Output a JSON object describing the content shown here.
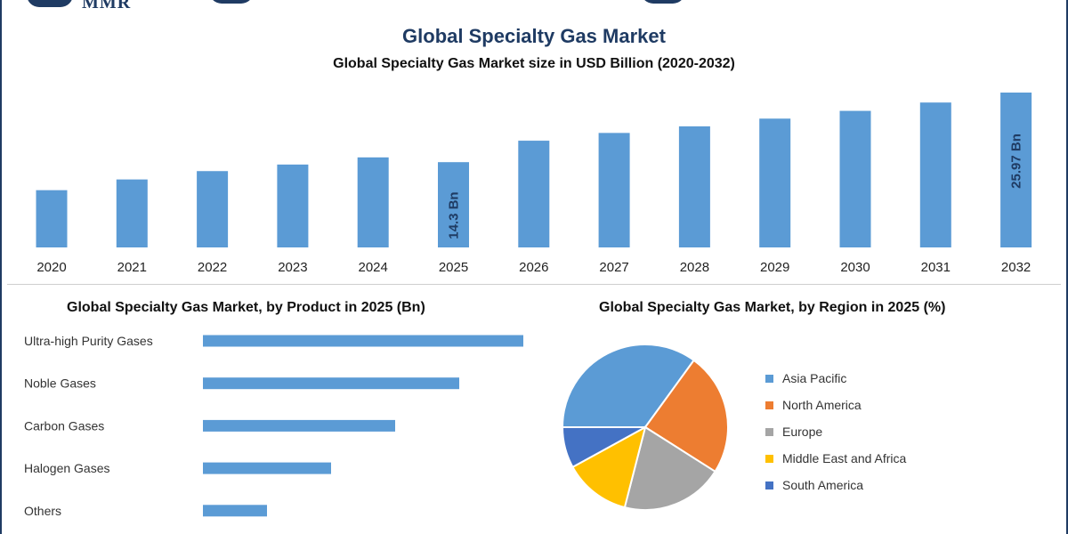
{
  "header": {
    "brand": "MMR",
    "title": "Global Specialty Gas Market"
  },
  "colors": {
    "title": "#1f3b63",
    "bar": "#5b9bd5",
    "asia_pacific": "#5b9bd5",
    "north_america": "#ed7d31",
    "europe": "#a5a5a5",
    "middle_east_africa": "#ffc000",
    "south_america": "#4472c4"
  },
  "chart_data": [
    {
      "type": "bar",
      "title": "Global Specialty Gas Market size in USD Billion (2020-2032)",
      "categories": [
        "2020",
        "2021",
        "2022",
        "2023",
        "2024",
        "2025",
        "2026",
        "2027",
        "2028",
        "2029",
        "2030",
        "2031",
        "2032"
      ],
      "values": [
        9.6,
        11.4,
        12.8,
        13.9,
        15.1,
        14.3,
        17.9,
        19.2,
        20.3,
        21.6,
        22.9,
        24.3,
        25.97
      ],
      "data_labels": [
        {
          "category": "2025",
          "text": "14.3 Bn"
        },
        {
          "category": "2032",
          "text": "25.97 Bn"
        }
      ],
      "xlabel": "",
      "ylabel": "",
      "grid": false
    },
    {
      "type": "bar",
      "orientation": "horizontal",
      "title": "Global Specialty Gas Market, by Product in 2025 (Bn)",
      "categories": [
        "Ultra-high Purity Gases",
        "Noble Gases",
        "Carbon Gases",
        "Halogen Gases",
        "Others"
      ],
      "values": [
        5.0,
        4.0,
        3.0,
        2.0,
        1.0
      ],
      "grid": false
    },
    {
      "type": "pie",
      "title": "Global Specialty Gas Market, by Region in 2025 (%)",
      "labels": [
        "Asia Pacific",
        "North America",
        "Europe",
        "Middle East and Africa",
        "South America"
      ],
      "values": [
        35,
        24,
        20,
        13,
        8
      ],
      "legend": "right"
    }
  ]
}
